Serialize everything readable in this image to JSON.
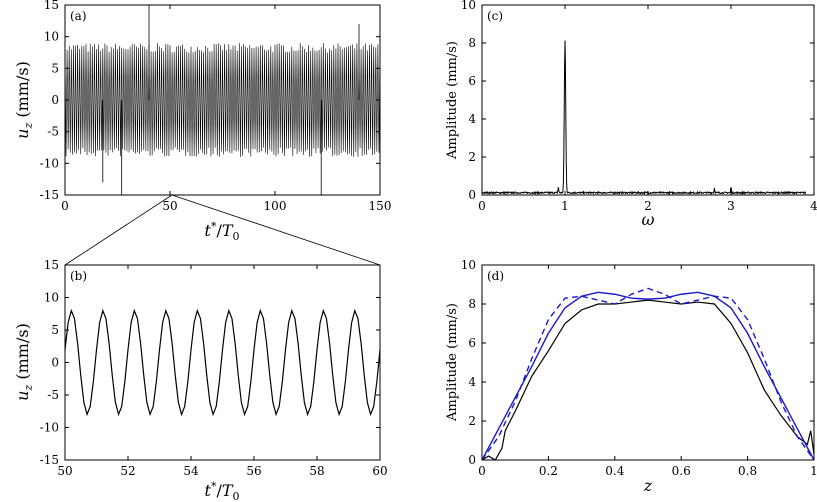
{
  "chart_data": [
    {
      "panel": "(a)",
      "type": "line",
      "xlabel": "t*/T0",
      "ylabel": "u_z (mm/s)",
      "xlim": [
        0,
        150
      ],
      "ylim": [
        -15,
        15
      ],
      "xticks": [
        0,
        50,
        100,
        150
      ],
      "yticks": [
        -15,
        -10,
        -5,
        0,
        5,
        10,
        15
      ],
      "series": [
        {
          "frequency_per_period": 1,
          "amplitude": 8.5,
          "envelope_min": 7.5,
          "envelope_max": 9.0,
          "spikes": [
            [
              18,
              -13
            ],
            [
              27,
              -15
            ],
            [
              40,
              15
            ],
            [
              122,
              -15
            ],
            [
              140,
              12
            ]
          ]
        }
      ]
    },
    {
      "panel": "(b)",
      "type": "line",
      "xlabel": "t*/T0",
      "ylabel": "u_z (mm/s)",
      "xlim": [
        50,
        60
      ],
      "ylim": [
        -15,
        15
      ],
      "xticks": [
        50,
        52,
        54,
        56,
        58,
        60
      ],
      "yticks": [
        -15,
        -10,
        -5,
        0,
        5,
        10,
        15
      ],
      "series": [
        {
          "frequency_per_period": 1,
          "amplitude": 8.0,
          "sample_step": 0.1
        }
      ]
    },
    {
      "panel": "(c)",
      "type": "line",
      "xlabel": "ω",
      "ylabel": "Amplitude (mm/s)",
      "xlim": [
        0,
        4
      ],
      "ylim": [
        0,
        10
      ],
      "xticks": [
        0,
        1,
        2,
        3,
        4
      ],
      "yticks": [
        0,
        2,
        4,
        6,
        8,
        10
      ],
      "series": [
        {
          "peaks": [
            [
              1.0,
              8.0
            ],
            [
              0.92,
              0.3
            ],
            [
              2.8,
              0.25
            ],
            [
              3.0,
              0.3
            ]
          ],
          "baseline": 0.12,
          "x_end": 3.9
        }
      ]
    },
    {
      "panel": "(d)",
      "type": "line",
      "xlabel": "z",
      "ylabel": "Amplitude (mm/s)",
      "xlim": [
        0,
        1
      ],
      "ylim": [
        0,
        10
      ],
      "xticks": [
        0,
        0.2,
        0.4,
        0.6,
        0.8,
        1
      ],
      "xticklabels": [
        "0",
        "0.2",
        "0.4",
        "0.6",
        "0.8",
        "1"
      ],
      "yticks": [
        0,
        2,
        4,
        6,
        8,
        10
      ],
      "series": [
        {
          "style": "solid-black",
          "points": [
            [
              0.0,
              0.0
            ],
            [
              0.02,
              0.2
            ],
            [
              0.04,
              0.0
            ],
            [
              0.06,
              0.6
            ],
            [
              0.07,
              1.5
            ],
            [
              0.1,
              2.5
            ],
            [
              0.15,
              4.3
            ],
            [
              0.2,
              5.6
            ],
            [
              0.25,
              7.0
            ],
            [
              0.3,
              7.7
            ],
            [
              0.35,
              8.0
            ],
            [
              0.4,
              8.0
            ],
            [
              0.45,
              8.1
            ],
            [
              0.5,
              8.2
            ],
            [
              0.55,
              8.1
            ],
            [
              0.6,
              8.0
            ],
            [
              0.65,
              8.1
            ],
            [
              0.7,
              8.0
            ],
            [
              0.75,
              7.0
            ],
            [
              0.8,
              5.5
            ],
            [
              0.85,
              3.6
            ],
            [
              0.9,
              2.3
            ],
            [
              0.95,
              1.2
            ],
            [
              0.98,
              0.8
            ],
            [
              0.99,
              1.5
            ],
            [
              1.0,
              0.3
            ]
          ]
        },
        {
          "style": "solid-blue",
          "points": [
            [
              0.0,
              0.0
            ],
            [
              0.05,
              1.6
            ],
            [
              0.1,
              3.2
            ],
            [
              0.15,
              4.8
            ],
            [
              0.2,
              6.5
            ],
            [
              0.25,
              7.8
            ],
            [
              0.3,
              8.4
            ],
            [
              0.35,
              8.6
            ],
            [
              0.4,
              8.5
            ],
            [
              0.45,
              8.3
            ],
            [
              0.5,
              8.25
            ],
            [
              0.55,
              8.3
            ],
            [
              0.6,
              8.5
            ],
            [
              0.65,
              8.6
            ],
            [
              0.7,
              8.4
            ],
            [
              0.75,
              7.8
            ],
            [
              0.8,
              6.5
            ],
            [
              0.85,
              4.8
            ],
            [
              0.9,
              3.2
            ],
            [
              0.95,
              1.6
            ],
            [
              1.0,
              0.0
            ]
          ]
        },
        {
          "style": "dashed-blue",
          "points": [
            [
              0.0,
              0.0
            ],
            [
              0.05,
              1.2
            ],
            [
              0.1,
              3.0
            ],
            [
              0.15,
              5.2
            ],
            [
              0.2,
              7.2
            ],
            [
              0.25,
              8.3
            ],
            [
              0.3,
              8.4
            ],
            [
              0.35,
              8.2
            ],
            [
              0.4,
              8.0
            ],
            [
              0.45,
              8.5
            ],
            [
              0.5,
              8.8
            ],
            [
              0.55,
              8.5
            ],
            [
              0.6,
              8.0
            ],
            [
              0.65,
              8.2
            ],
            [
              0.7,
              8.4
            ],
            [
              0.75,
              8.3
            ],
            [
              0.8,
              7.2
            ],
            [
              0.85,
              5.2
            ],
            [
              0.9,
              3.0
            ],
            [
              0.95,
              1.2
            ],
            [
              1.0,
              0.0
            ]
          ]
        }
      ]
    }
  ]
}
